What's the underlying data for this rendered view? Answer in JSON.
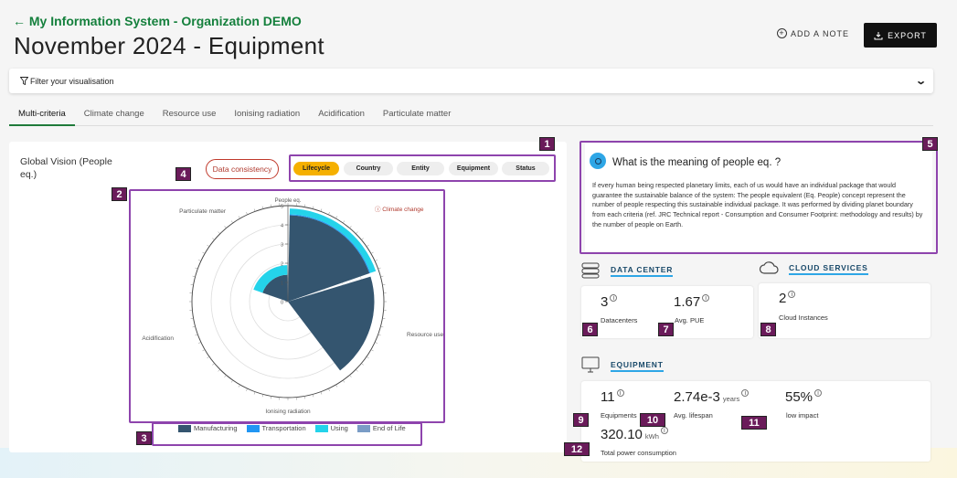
{
  "header": {
    "back_link": "← My Information System - Organization DEMO",
    "title": "November 2024 - Equipment",
    "add_note": "ADD A NOTE",
    "export": "EXPORT"
  },
  "filter": {
    "label": "Filter your visualisation"
  },
  "tabs": [
    "Multi-criteria",
    "Climate change",
    "Resource use",
    "Ionising radiation",
    "Acidification",
    "Particulate matter"
  ],
  "global_vision": {
    "title": "Global Vision (People eq.)",
    "data_consistency": "Data consistency",
    "groupings": [
      "Lifecycle",
      "Country",
      "Entity",
      "Equipment",
      "Status"
    ],
    "active_grouping": "Lifecycle"
  },
  "chart_data": {
    "type": "polar-bar",
    "axis_title": "People eq.",
    "ticks": [
      "0",
      "1",
      "2",
      "3",
      "4",
      "5"
    ],
    "rlim": [
      0,
      5
    ],
    "categories": [
      "Climate change",
      "Resource use",
      "Ionising radiation",
      "Acidification",
      "Particulate matter"
    ],
    "warning_category": "Climate change",
    "series": [
      {
        "name": "Manufacturing",
        "color": "#34556f",
        "values": [
          4.5,
          4.5,
          0,
          0,
          1.4
        ]
      },
      {
        "name": "Transportation",
        "color": "#2196f3",
        "values": [
          0.05,
          0,
          0,
          0,
          0
        ]
      },
      {
        "name": "Using",
        "color": "#24d3ea",
        "values": [
          0.3,
          0,
          0,
          0,
          0.5
        ]
      },
      {
        "name": "End of Life",
        "color": "#7a9cc6",
        "values": [
          0,
          0,
          0,
          0,
          0
        ]
      }
    ]
  },
  "info": {
    "title": "What is the meaning of people eq. ?",
    "text": "If every human being respected planetary limits, each of us would have an individual package that would guarantee the sustainable balance of the system: The people equivalent (Eq. People) concept represent the number of people respecting this sustainable individual package. It was performed by dividing planet boundary from each criteria (ref. JRC Technical report - Consumption and Consumer Footprint: methodology and results) by the number of people on Earth."
  },
  "data_center": {
    "heading": "DATA CENTER",
    "datacenters_value": "3",
    "datacenters_label": "Datacenters",
    "pue_value": "1.67",
    "pue_label": "Avg. PUE"
  },
  "cloud": {
    "heading": "CLOUD SERVICES",
    "instances_value": "2",
    "instances_label": "Cloud Instances"
  },
  "equipment": {
    "heading": "EQUIPMENT",
    "count_value": "11",
    "count_label": "Equipments",
    "lifespan_value": "2.74e-3",
    "lifespan_unit": "years",
    "lifespan_label": "Avg. lifespan",
    "impact_value": "55%",
    "impact_label": "low impact",
    "power_value": "320.10",
    "power_unit": "kWh",
    "power_label": "Total power consumption"
  },
  "markers": [
    "1",
    "2",
    "3",
    "4",
    "5",
    "6",
    "7",
    "8",
    "9",
    "10",
    "11",
    "12"
  ],
  "colors": {
    "accent_green": "#15803d",
    "highlight": "#8e44ad",
    "active_chip": "#f5b000"
  }
}
